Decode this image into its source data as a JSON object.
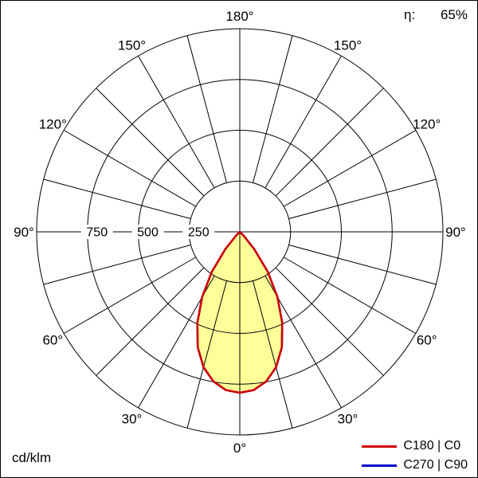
{
  "meta": {
    "efficiency_label": "η:",
    "efficiency_value": "65%",
    "unit_label": "cd/klm"
  },
  "chart_data": {
    "type": "polar",
    "title": "Luminous intensity distribution polar diagram",
    "unit": "cd/klm",
    "center": {
      "x": 300,
      "y": 290
    },
    "outer_radius": 255,
    "max_value": 1000,
    "rings": [
      250,
      500,
      750,
      1000
    ],
    "ring_tick_labels": [
      {
        "value": 750,
        "text": "750"
      },
      {
        "value": 500,
        "text": "500"
      },
      {
        "value": 250,
        "text": "250"
      }
    ],
    "spoke_step_deg": 15,
    "angle_label_radius": 271,
    "grid_color": "#000000",
    "angle_labels": [
      {
        "text": "180°",
        "gamma": 180,
        "side": 1
      },
      {
        "text": "150°",
        "gamma": 150,
        "side": -1
      },
      {
        "text": "150°",
        "gamma": 150,
        "side": 1
      },
      {
        "text": "120°",
        "gamma": 120,
        "side": -1
      },
      {
        "text": "120°",
        "gamma": 120,
        "side": 1
      },
      {
        "text": "90°",
        "gamma": 90,
        "side": -1
      },
      {
        "text": "90°",
        "gamma": 90,
        "side": 1
      },
      {
        "text": "60°",
        "gamma": 60,
        "side": -1
      },
      {
        "text": "60°",
        "gamma": 60,
        "side": 1
      },
      {
        "text": "30°",
        "gamma": 30,
        "side": -1
      },
      {
        "text": "30°",
        "gamma": 30,
        "side": 1
      },
      {
        "text": "0°",
        "gamma": 0,
        "side": 1
      }
    ],
    "gamma_deg": [
      -50,
      -45,
      -40,
      -35,
      -30,
      -25,
      -20,
      -15,
      -10,
      -5,
      0,
      5,
      10,
      15,
      20,
      25,
      30,
      35,
      40,
      45,
      50
    ],
    "series": [
      {
        "name": "C180 | C0",
        "color": "#d40000",
        "fill": "#ffff99",
        "values": [
          0,
          25,
          110,
          240,
          370,
          495,
          605,
          690,
          748,
          782,
          792,
          782,
          748,
          690,
          605,
          495,
          370,
          240,
          110,
          25,
          0
        ]
      },
      {
        "name": "C270 | C90",
        "color": "#0000cc",
        "fill": "none",
        "values": [
          0,
          25,
          110,
          240,
          370,
          495,
          605,
          690,
          748,
          782,
          792,
          782,
          748,
          690,
          605,
          495,
          370,
          240,
          110,
          25,
          0
        ]
      }
    ],
    "legend": [
      {
        "label": "C180 | C0",
        "color": "#d40000"
      },
      {
        "label": "C270 | C90",
        "color": "#0000cc"
      }
    ]
  }
}
